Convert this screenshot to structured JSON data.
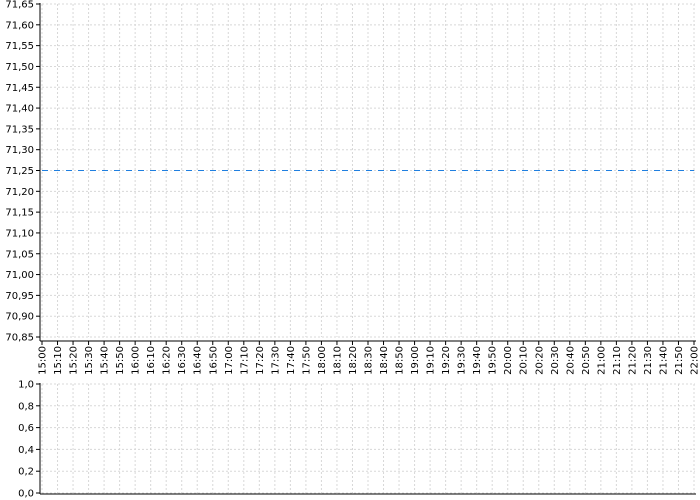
{
  "chart_data": [
    {
      "type": "line",
      "title": "",
      "xlabel": "",
      "ylabel": "",
      "ylim": [
        70.85,
        71.65
      ],
      "y_ticks": [
        "70,85",
        "70,90",
        "70,95",
        "71,00",
        "71,05",
        "71,10",
        "71,15",
        "71,20",
        "71,25",
        "71,30",
        "71,35",
        "71,40",
        "71,45",
        "71,50",
        "71,55",
        "71,60",
        "71,65"
      ],
      "x_ticks": [
        "15:00",
        "15:10",
        "15:20",
        "15:30",
        "15:40",
        "15:50",
        "16:00",
        "16:10",
        "16:20",
        "16:30",
        "16:40",
        "16:50",
        "17:00",
        "17:10",
        "17:20",
        "17:30",
        "17:40",
        "17:50",
        "18:00",
        "18:10",
        "18:20",
        "18:30",
        "18:40",
        "18:50",
        "19:00",
        "19:10",
        "19:20",
        "19:30",
        "19:40",
        "19:50",
        "20:00",
        "20:10",
        "20:20",
        "20:30",
        "20:40",
        "20:50",
        "21:00",
        "21:10",
        "21:20",
        "21:30",
        "21:40",
        "21:50",
        "22:00"
      ],
      "xlim": [
        "15:00",
        "22:00"
      ],
      "grid": true,
      "series": [
        {
          "style": "dashed",
          "color": "#1f7fe0",
          "x": [
            "15:00",
            "22:00"
          ],
          "values": [
            71.25,
            71.25
          ]
        }
      ]
    },
    {
      "type": "bar",
      "title": "",
      "ylim": [
        0,
        1.0
      ],
      "y_ticks": [
        "0,0",
        "0,2",
        "0,4",
        "0,6",
        "0,8",
        "1,0"
      ],
      "xlim": [
        "15:00",
        "22:00"
      ],
      "grid": true,
      "series": []
    }
  ]
}
